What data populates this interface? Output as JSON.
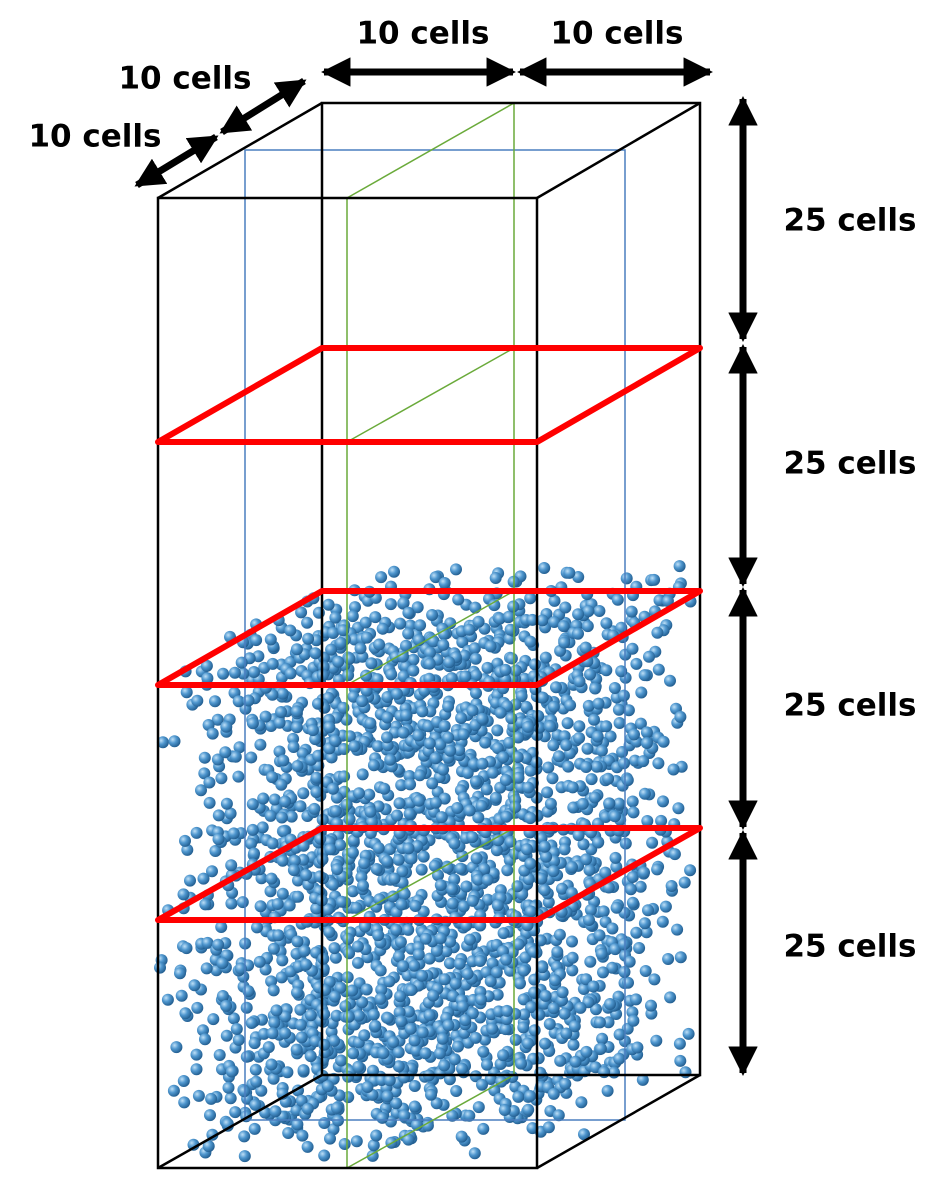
{
  "labels": {
    "top_width_1": "10 cells",
    "top_width_2": "10 cells",
    "depth_1": "10 cells",
    "depth_2": "10 cells",
    "height": [
      "25 cells",
      "25 cells",
      "25 cells",
      "25 cells"
    ]
  }
}
